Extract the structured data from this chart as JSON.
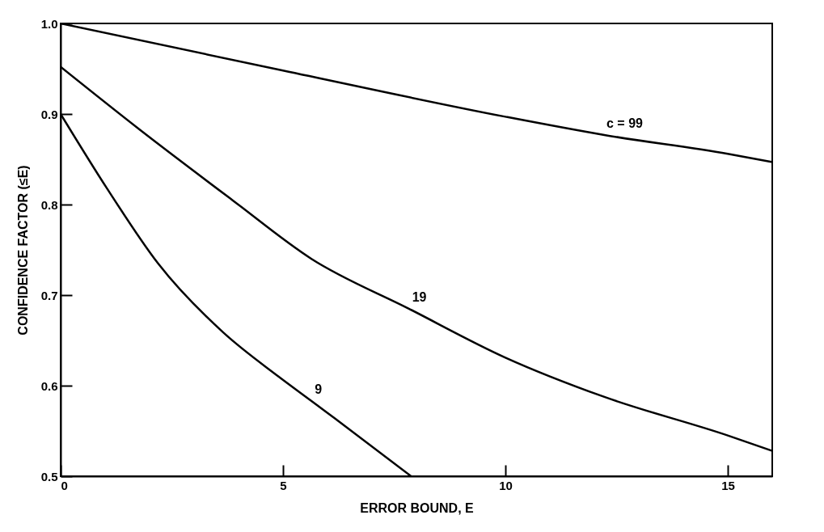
{
  "chart_data": {
    "type": "line",
    "xlabel": "ERROR BOUND, E",
    "ylabel": "CONFIDENCE FACTOR (≤E)",
    "xlim": [
      0,
      16
    ],
    "ylim": [
      0.5,
      1.0
    ],
    "xticks": [
      0,
      5,
      10,
      15
    ],
    "yticks": [
      0.5,
      0.6,
      0.7,
      0.8,
      0.9,
      {
        "value": 1,
        "label": "1.0"
      }
    ],
    "grid": false,
    "legend": false,
    "marker": "none",
    "line_style": "solid",
    "series": [
      {
        "color": "#000000",
        "x": [
          0,
          5,
          10,
          12.2,
          15,
          16
        ],
        "values": [
          1.0,
          0.948,
          0.897,
          0.877,
          0.856,
          0.847
        ]
      },
      {
        "color": "#000000",
        "x": [
          0,
          1.77,
          3.86,
          5.64,
          7.83,
          10,
          12.2,
          15,
          16
        ],
        "values": [
          0.952,
          0.883,
          0.805,
          0.74,
          0.685,
          0.631,
          0.588,
          0.545,
          0.528
        ]
      },
      {
        "color": "#000000",
        "x": [
          0,
          1.04,
          2.19,
          3.65,
          4.9,
          5.64,
          6.16,
          7.88
        ],
        "values": [
          0.9,
          0.818,
          0.735,
          0.659,
          0.61,
          0.583,
          0.564,
          0.5
        ]
      }
    ],
    "annotations": [
      {
        "text": "c = 99",
        "x": 12.2,
        "y": 0.877
      },
      {
        "text": "19",
        "x": 7.83,
        "y": 0.685
      },
      {
        "text": "9",
        "x": 5.64,
        "y": 0.583
      }
    ]
  }
}
